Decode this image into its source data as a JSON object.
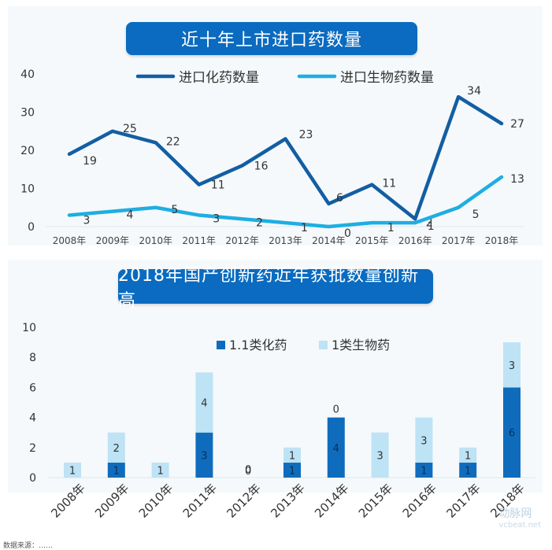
{
  "chart1": {
    "title": "近十年上市进口药数量",
    "chart_data": {
      "type": "line",
      "title": "近十年上市进口药数量",
      "categories": [
        "2008年",
        "2009年",
        "2010年",
        "2011年",
        "2012年",
        "2013年",
        "2014年",
        "2015年",
        "2016年",
        "2017年",
        "2018年"
      ],
      "ylim": [
        0,
        40
      ],
      "yticks": [
        0,
        10,
        20,
        30,
        40
      ],
      "grid": false,
      "legend": "top",
      "series": [
        {
          "name": "进口化药数量",
          "color": "#135ea3",
          "values": [
            19,
            25,
            22,
            11,
            16,
            23,
            6,
            11,
            2,
            34,
            27
          ]
        },
        {
          "name": "进口生物药数量",
          "color": "#1eaee2",
          "values": [
            3,
            4,
            5,
            3,
            2,
            1,
            0,
            1,
            1,
            5,
            13
          ]
        }
      ]
    }
  },
  "chart2": {
    "title": "2018年国产创新药近年获批数量创新高",
    "chart_data": {
      "type": "bar",
      "stacked": true,
      "title": "2018年国产创新药近年获批数量创新高",
      "categories": [
        "2008年",
        "2009年",
        "2010年",
        "2011年",
        "2012年",
        "2013年",
        "2014年",
        "2015年",
        "2016年",
        "2017年",
        "2018年"
      ],
      "ylim": [
        0,
        10
      ],
      "yticks": [
        0,
        2,
        4,
        6,
        8,
        10
      ],
      "grid": false,
      "legend": "top",
      "series": [
        {
          "name": "1.1类化药",
          "color": "#0f6cbd",
          "values": [
            0,
            1,
            0,
            3,
            0,
            1,
            4,
            0,
            1,
            1,
            6
          ]
        },
        {
          "name": "1类生物药",
          "color": "#bde3f5",
          "values": [
            1,
            2,
            1,
            4,
            0,
            1,
            0,
            3,
            3,
            1,
            3
          ]
        }
      ]
    }
  },
  "watermark": {
    "brand": "动脉网",
    "url": "vcbeat.net"
  },
  "footnote": "数据来源：……"
}
